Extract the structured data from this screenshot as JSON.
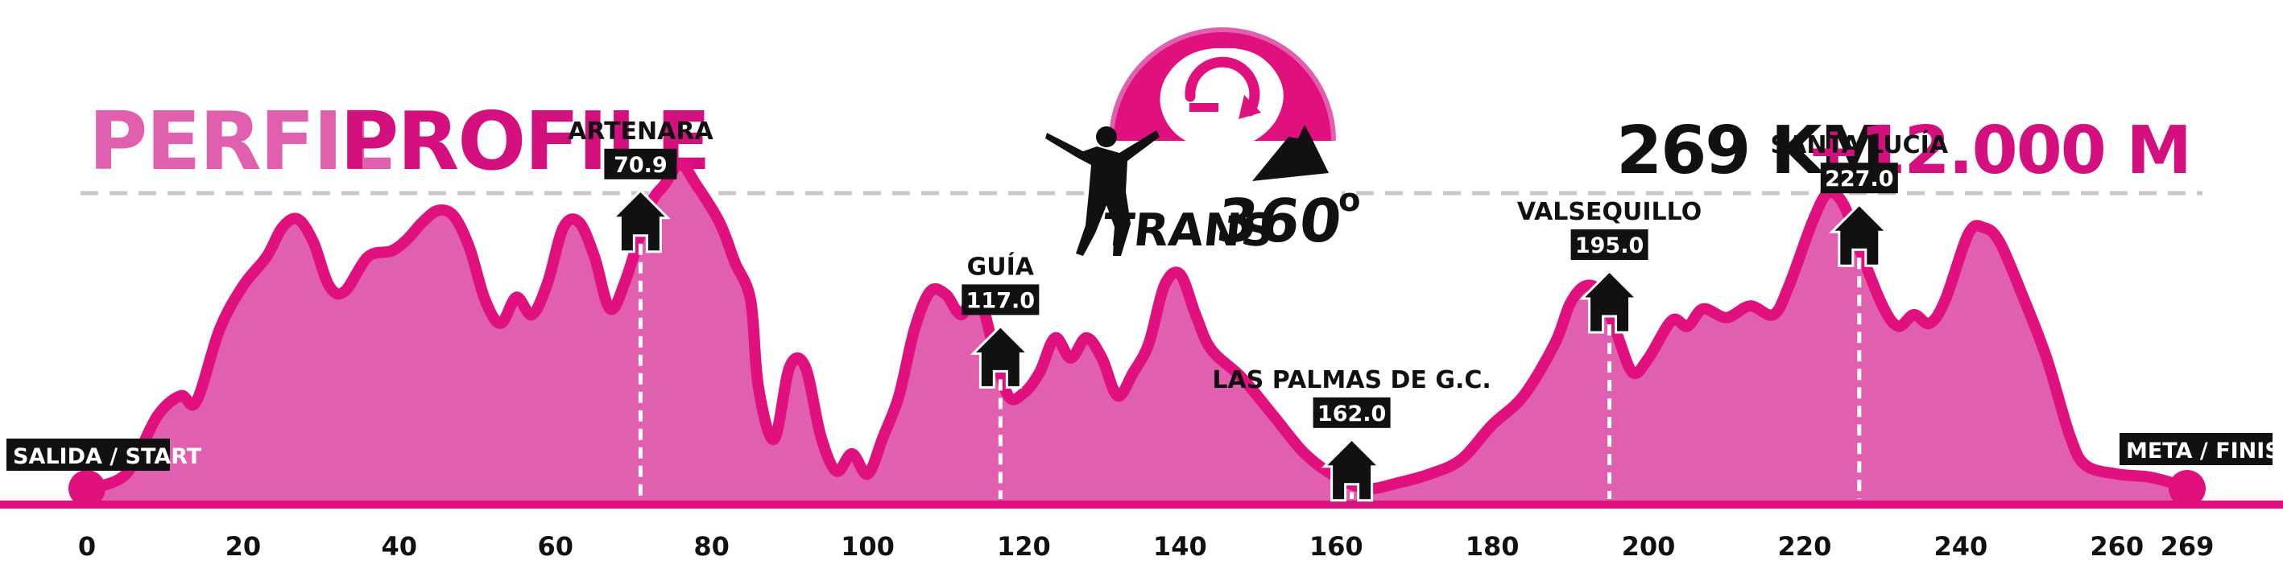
{
  "header": {
    "title_es": "PERFIL",
    "title_en": "PROFILE",
    "distance": "269 KM",
    "elevation_gain": "+12.000 M"
  },
  "logo": {
    "brand": "TRANS",
    "number": "360",
    "degree": "o"
  },
  "colors": {
    "fill": "#e05fae",
    "stroke": "#e0117f",
    "title_light": "#e05fae",
    "title_dark": "#d4107e",
    "dashed_line": "#c8c8c8",
    "label_bg": "#111111"
  },
  "chart_data": {
    "type": "area",
    "xlim": [
      0,
      269
    ],
    "xticks": [
      0,
      20,
      40,
      60,
      80,
      100,
      120,
      140,
      160,
      180,
      200,
      220,
      240,
      260,
      269
    ],
    "grid": false,
    "profile": [
      [
        0,
        0.0
      ],
      [
        5,
        0.05
      ],
      [
        9,
        0.25
      ],
      [
        12,
        0.32
      ],
      [
        14,
        0.3
      ],
      [
        17,
        0.55
      ],
      [
        20,
        0.7
      ],
      [
        23,
        0.8
      ],
      [
        25,
        0.9
      ],
      [
        27,
        0.93
      ],
      [
        29,
        0.85
      ],
      [
        31,
        0.7
      ],
      [
        33,
        0.68
      ],
      [
        36,
        0.8
      ],
      [
        39,
        0.82
      ],
      [
        41,
        0.86
      ],
      [
        43,
        0.92
      ],
      [
        45,
        0.96
      ],
      [
        47,
        0.94
      ],
      [
        49,
        0.83
      ],
      [
        51,
        0.65
      ],
      [
        53,
        0.57
      ],
      [
        55,
        0.66
      ],
      [
        57,
        0.6
      ],
      [
        59,
        0.71
      ],
      [
        61,
        0.9
      ],
      [
        63,
        0.92
      ],
      [
        65,
        0.8
      ],
      [
        67,
        0.62
      ],
      [
        69,
        0.72
      ],
      [
        72,
        0.97
      ],
      [
        74,
        1.05
      ],
      [
        76,
        1.12
      ],
      [
        78,
        1.05
      ],
      [
        81,
        0.92
      ],
      [
        83,
        0.78
      ],
      [
        85,
        0.65
      ],
      [
        86,
        0.35
      ],
      [
        88,
        0.17
      ],
      [
        90,
        0.42
      ],
      [
        92,
        0.42
      ],
      [
        94,
        0.18
      ],
      [
        96,
        0.06
      ],
      [
        98,
        0.12
      ],
      [
        100,
        0.05
      ],
      [
        102,
        0.18
      ],
      [
        104,
        0.32
      ],
      [
        106,
        0.55
      ],
      [
        108,
        0.68
      ],
      [
        110,
        0.67
      ],
      [
        112,
        0.6
      ],
      [
        114,
        0.68
      ],
      [
        116,
        0.5
      ],
      [
        118,
        0.32
      ],
      [
        120,
        0.33
      ],
      [
        122,
        0.4
      ],
      [
        124,
        0.52
      ],
      [
        126,
        0.45
      ],
      [
        128,
        0.52
      ],
      [
        130,
        0.45
      ],
      [
        132,
        0.32
      ],
      [
        134,
        0.4
      ],
      [
        136,
        0.5
      ],
      [
        138,
        0.7
      ],
      [
        140,
        0.74
      ],
      [
        142,
        0.6
      ],
      [
        144,
        0.48
      ],
      [
        148,
        0.38
      ],
      [
        152,
        0.25
      ],
      [
        156,
        0.12
      ],
      [
        160,
        0.04
      ],
      [
        164,
        0.0
      ],
      [
        168,
        0.02
      ],
      [
        172,
        0.05
      ],
      [
        176,
        0.1
      ],
      [
        180,
        0.22
      ],
      [
        184,
        0.32
      ],
      [
        188,
        0.5
      ],
      [
        190,
        0.64
      ],
      [
        192,
        0.7
      ],
      [
        194,
        0.67
      ],
      [
        196,
        0.53
      ],
      [
        198,
        0.4
      ],
      [
        200,
        0.45
      ],
      [
        203,
        0.58
      ],
      [
        205,
        0.56
      ],
      [
        207,
        0.62
      ],
      [
        210,
        0.59
      ],
      [
        213,
        0.63
      ],
      [
        216,
        0.6
      ],
      [
        218,
        0.7
      ],
      [
        221,
        0.92
      ],
      [
        223,
        1.02
      ],
      [
        225,
        0.98
      ],
      [
        227,
        0.83
      ],
      [
        230,
        0.63
      ],
      [
        232,
        0.56
      ],
      [
        234,
        0.6
      ],
      [
        236,
        0.57
      ],
      [
        238,
        0.65
      ],
      [
        241,
        0.88
      ],
      [
        243,
        0.9
      ],
      [
        245,
        0.85
      ],
      [
        248,
        0.66
      ],
      [
        251,
        0.45
      ],
      [
        254,
        0.18
      ],
      [
        256,
        0.08
      ],
      [
        260,
        0.05
      ],
      [
        264,
        0.04
      ],
      [
        267,
        0.02
      ],
      [
        269,
        0.0
      ]
    ],
    "waypoints": [
      {
        "name": "ARTENARA",
        "km_label": "70.9",
        "x": 70.9
      },
      {
        "name": "GUÍA",
        "km_label": "117.0",
        "x": 117.0
      },
      {
        "name": "LAS PALMAS DE G.C.",
        "km_label": "162.0",
        "x": 162.0
      },
      {
        "name": "VALSEQUILLO",
        "km_label": "195.0",
        "x": 195.0
      },
      {
        "name": "SANTA LUCÍA",
        "km_label": "227.0",
        "x": 227.0
      }
    ],
    "start_label": "SALIDA / START",
    "finish_label": "META / FINISH"
  }
}
